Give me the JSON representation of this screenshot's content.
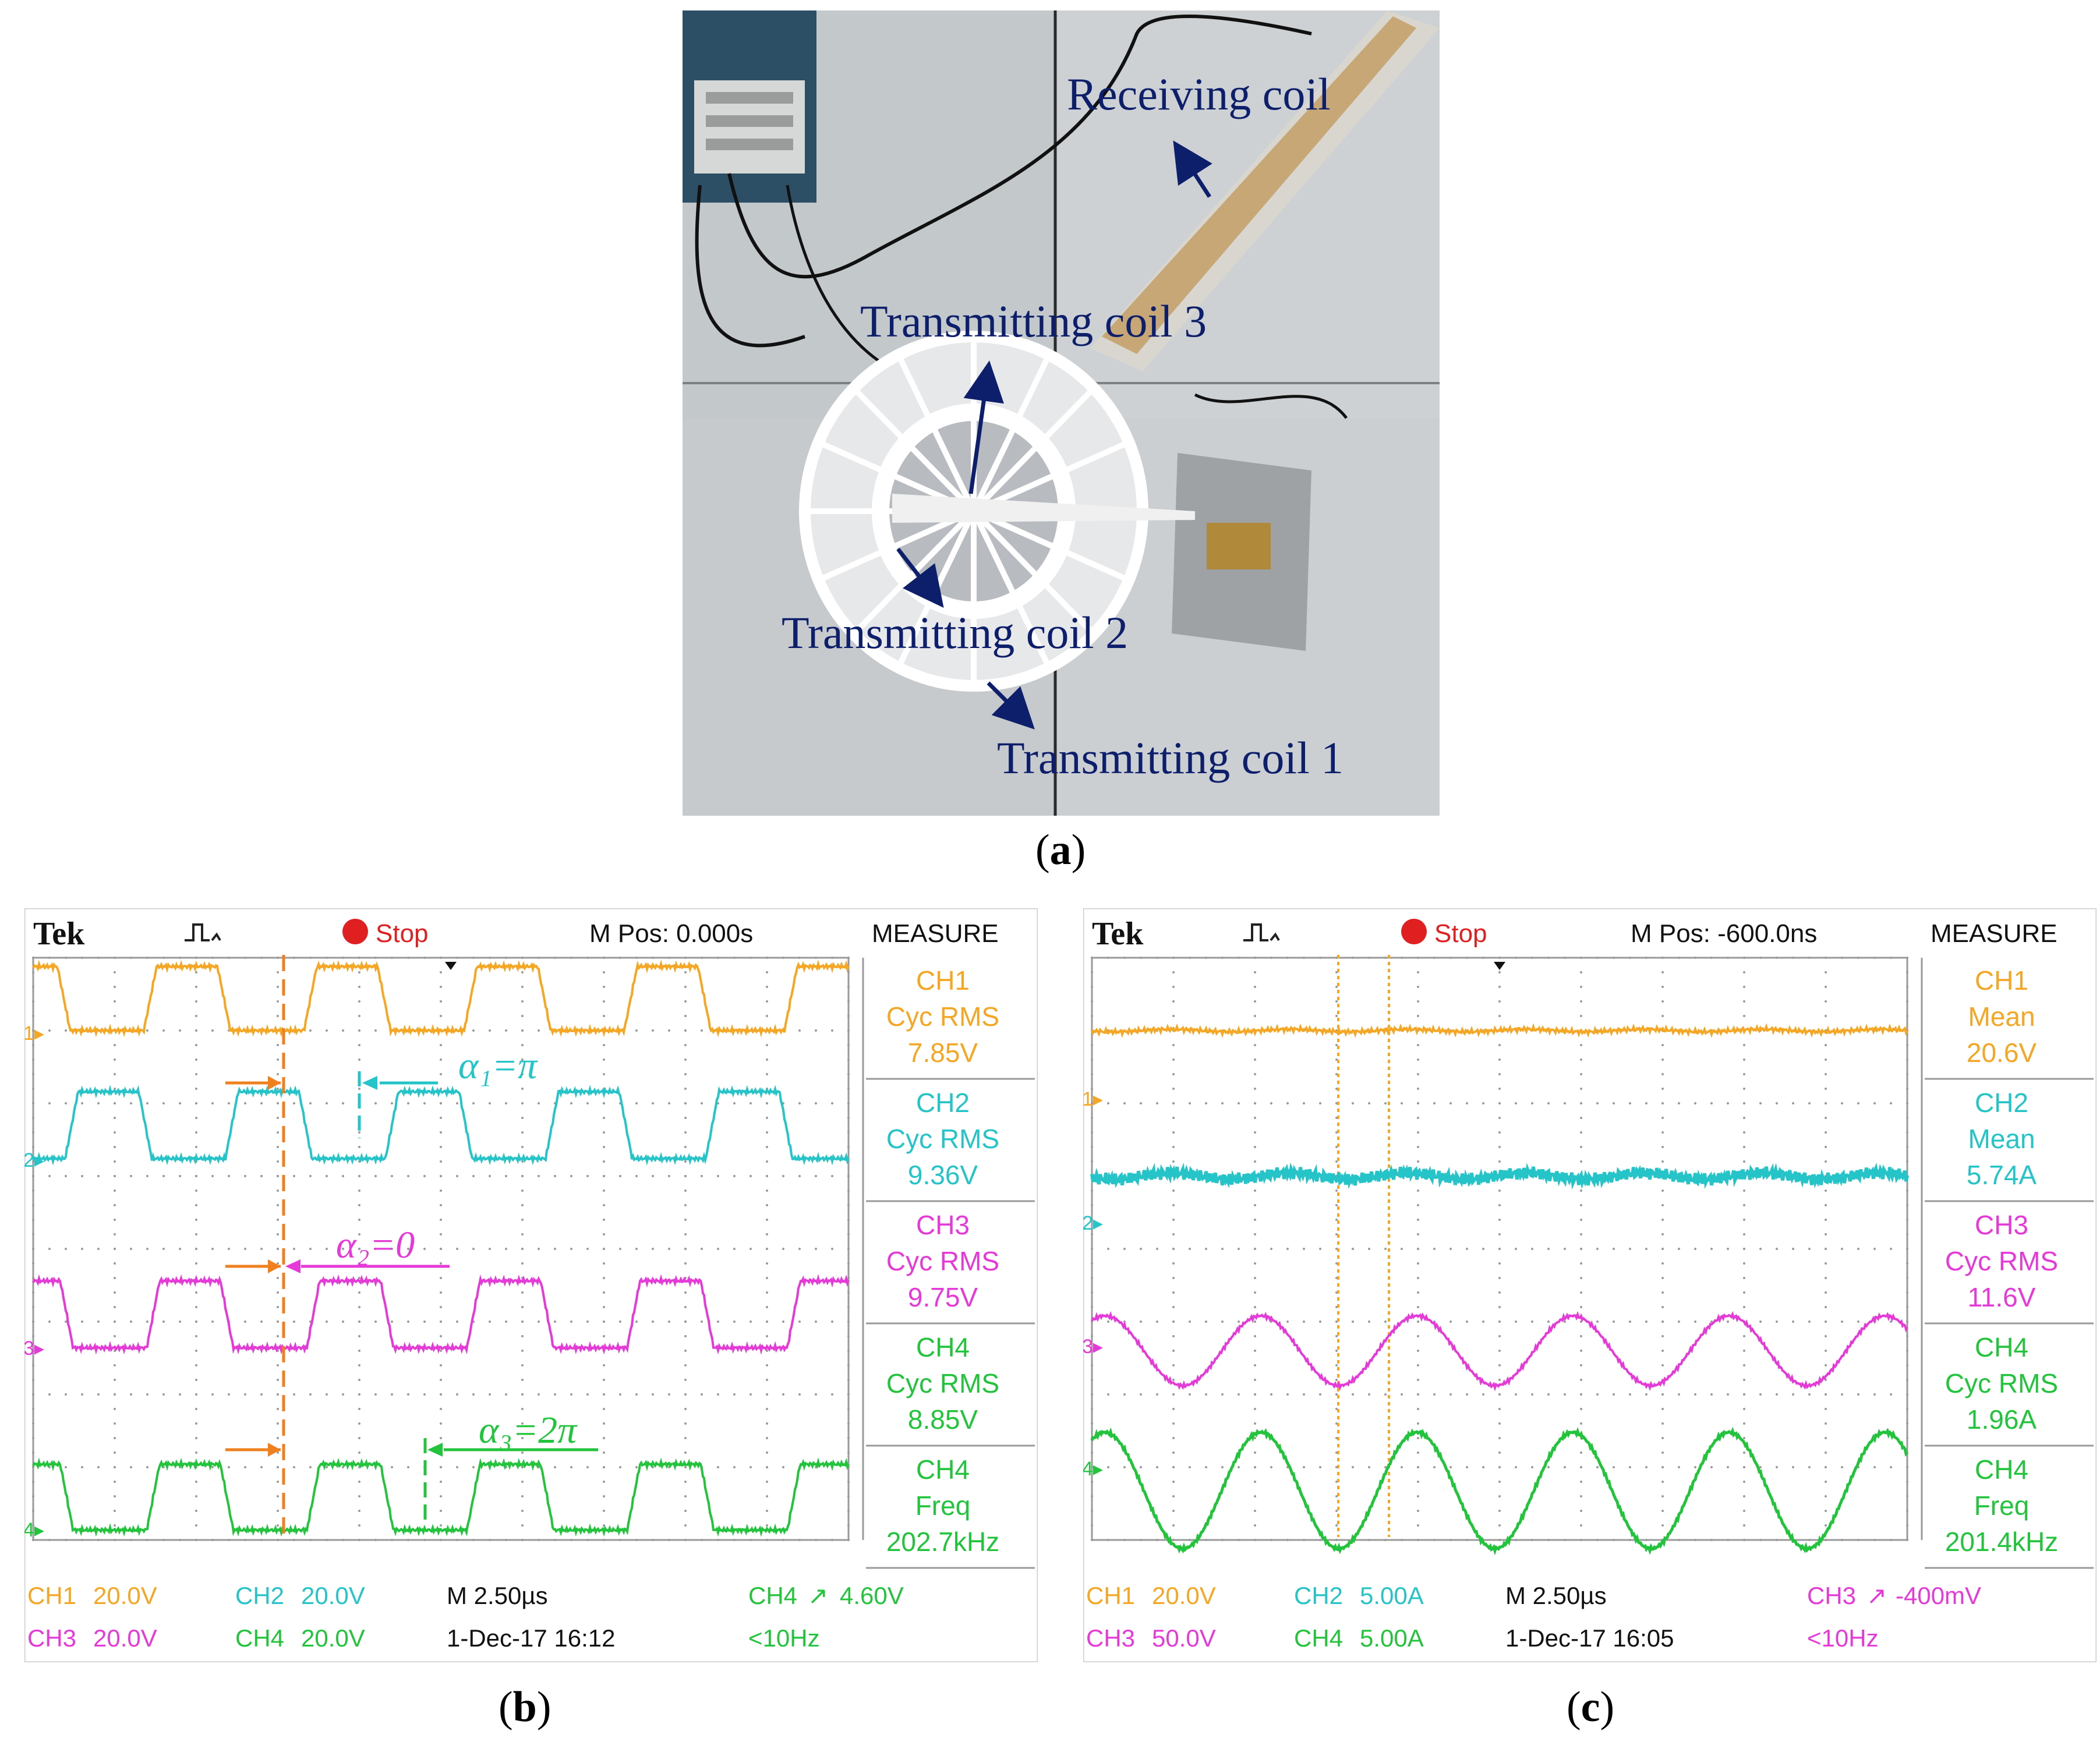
{
  "panel_a": {
    "caption_letter": "a",
    "labels": {
      "receiving": "Receiving coil",
      "tx3": "Transmitting coil 3",
      "tx2": "Transmitting coil 2",
      "tx1": "Transmitting coil 1"
    }
  },
  "panel_b": {
    "caption_letter": "b",
    "brand": "Tek",
    "trigger_status": "Stop",
    "mpos": "M Pos: 0.000s",
    "measure_title": "MEASURE",
    "measures": [
      {
        "line1": "CH1",
        "line2": "Cyc RMS",
        "value": "7.85V",
        "color": "#f5a623"
      },
      {
        "line1": "CH2",
        "line2": "Cyc RMS",
        "value": "9.36V",
        "color": "#25c4c8"
      },
      {
        "line1": "CH3",
        "line2": "Cyc RMS",
        "value": "9.75V",
        "color": "#e63ad8"
      },
      {
        "line1": "CH4",
        "line2": "Cyc RMS",
        "value": "8.85V",
        "color": "#22c43c"
      },
      {
        "line1": "CH4",
        "line2": "Freq",
        "value": "202.7kHz",
        "color": "#22c43c"
      }
    ],
    "annotations": {
      "a1": "α₁=π",
      "a2": "α₂=0",
      "a3": "α₃=2π"
    },
    "bottom": {
      "ch1": "CH1",
      "ch1v": "20.0V",
      "ch2": "CH2",
      "ch2v": "20.0V",
      "time": "M 2.50µs",
      "trig_ch": "CH4",
      "trig_sym": "↗",
      "trig_v": "4.60V",
      "ch3": "CH3",
      "ch3v": "20.0V",
      "ch4": "CH4",
      "ch4v": "20.0V",
      "date": "1-Dec-17 16:12",
      "lf": "<10Hz"
    }
  },
  "panel_c": {
    "caption_letter": "c",
    "brand": "Tek",
    "trigger_status": "Stop",
    "mpos": "M Pos: -600.0ns",
    "measure_title": "MEASURE",
    "measures": [
      {
        "line1": "CH1",
        "line2": "Mean",
        "value": "20.6V",
        "color": "#f5a623"
      },
      {
        "line1": "CH2",
        "line2": "Mean",
        "value": "5.74A",
        "color": "#25c4c8"
      },
      {
        "line1": "CH3",
        "line2": "Cyc RMS",
        "value": "11.6V",
        "color": "#e63ad8"
      },
      {
        "line1": "CH4",
        "line2": "Cyc RMS",
        "value": "1.96A",
        "color": "#22c43c"
      },
      {
        "line1": "CH4",
        "line2": "Freq",
        "value": "201.4kHz",
        "color": "#22c43c"
      }
    ],
    "bottom": {
      "ch1": "CH1",
      "ch1v": "20.0V",
      "ch2": "CH2",
      "ch2v": "5.00A",
      "time": "M 2.50µs",
      "trig_ch": "CH3",
      "trig_sym": "↗",
      "trig_v": "-400mV",
      "ch3": "CH3",
      "ch3v": "50.0V",
      "ch4": "CH4",
      "ch4v": "5.00A",
      "date": "1-Dec-17 16:05",
      "lf": "<10Hz"
    }
  },
  "colors": {
    "ch1": "#f5a623",
    "ch2": "#25c4c8",
    "ch3": "#e63ad8",
    "ch4": "#22c43c",
    "arrow": "#0d1f6b"
  }
}
